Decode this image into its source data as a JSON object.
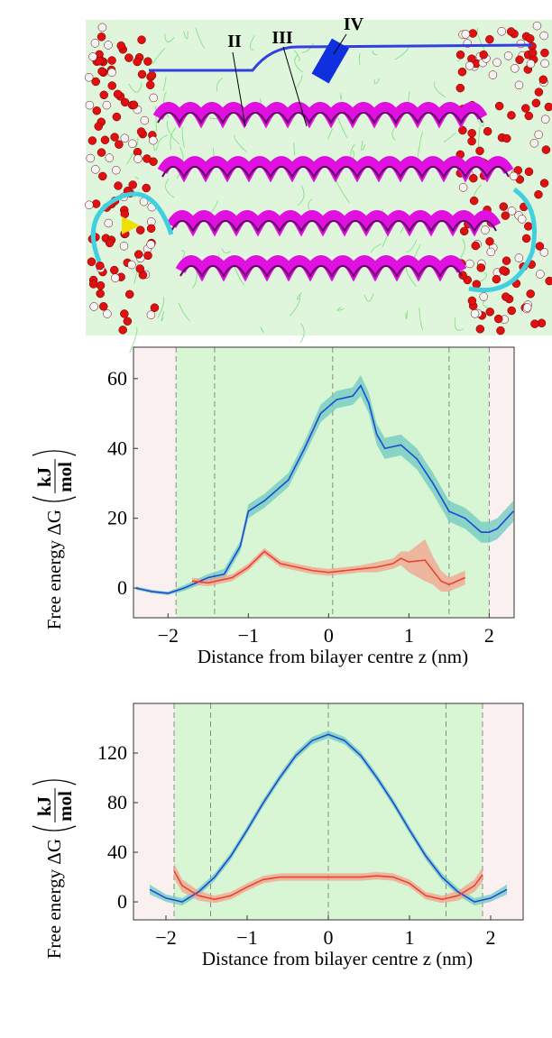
{
  "image": {
    "labels": [
      "II",
      "III",
      "IV"
    ]
  },
  "chart_data": [
    {
      "type": "line",
      "xlabel": "Distance from bilayer centre z (nm)",
      "ylabel": "Free energy ΔG",
      "ylabel_unit": [
        "kJ",
        "mol"
      ],
      "xlim": [
        -2.43,
        2.31
      ],
      "ylim": [
        -8.5,
        69
      ],
      "xticks": [
        {
          "value": -2,
          "label": "−2"
        },
        {
          "value": -1,
          "label": "−1"
        },
        0,
        1,
        2
      ],
      "yticks": [
        0,
        20,
        40,
        60
      ],
      "vlines": [
        -1.9,
        -1.42,
        0.05,
        1.5,
        2.0
      ],
      "series": [
        {
          "color": "#1f48d6",
          "band_color": "#6cc9c2",
          "x": [
            -2.4,
            -2.2,
            -2.0,
            -1.8,
            -1.6,
            -1.5,
            -1.3,
            -1.1,
            -1.0,
            -0.8,
            -0.6,
            -0.5,
            -0.3,
            -0.1,
            0.1,
            0.3,
            0.4,
            0.5,
            0.6,
            0.7,
            0.9,
            1.1,
            1.3,
            1.5,
            1.7,
            1.9,
            2.0,
            2.1,
            2.3
          ],
          "values": [
            0,
            -1,
            -1.5,
            0,
            2,
            3,
            4,
            12,
            22,
            25,
            29,
            31,
            40,
            50,
            54,
            55,
            58,
            53,
            44,
            40,
            41,
            37,
            30,
            22,
            20,
            16,
            16,
            17,
            22
          ],
          "errors": [
            0.5,
            0.5,
            0.5,
            0.8,
            1,
            1,
            1.5,
            1.5,
            2,
            2,
            2,
            2,
            2,
            2.5,
            2.5,
            2.5,
            3,
            3,
            3,
            3,
            3,
            3,
            3,
            3,
            3,
            3,
            3,
            3,
            3
          ]
        },
        {
          "color": "#e8452c",
          "band_color": "#f2a08e",
          "x": [
            -1.7,
            -1.5,
            -1.2,
            -1.0,
            -0.8,
            -0.6,
            -0.4,
            -0.2,
            0,
            0.2,
            0.4,
            0.6,
            0.8,
            0.9,
            1.0,
            1.2,
            1.3,
            1.4,
            1.5,
            1.7
          ],
          "values": [
            2,
            1.5,
            3,
            6,
            10.5,
            7,
            6,
            5,
            4.5,
            5,
            5.5,
            6,
            7,
            8.5,
            7.5,
            8,
            5,
            2,
            1,
            3
          ],
          "errors": [
            1,
            1,
            1,
            1,
            1,
            1,
            1,
            1,
            1,
            1,
            1,
            1.5,
            1.5,
            2,
            3,
            6,
            4,
            3,
            2,
            2
          ]
        }
      ]
    },
    {
      "type": "line",
      "xlabel": "Distance from bilayer centre z (nm)",
      "ylabel": "Free energy ΔG",
      "ylabel_unit": [
        "kJ",
        "mol"
      ],
      "xlim": [
        -2.4,
        2.4
      ],
      "ylim": [
        -14.5,
        160
      ],
      "xticks": [
        {
          "value": -2,
          "label": "−2"
        },
        {
          "value": -1,
          "label": "−1"
        },
        0,
        1,
        2
      ],
      "yticks": [
        0,
        40,
        80,
        120
      ],
      "vlines": [
        -1.9,
        -1.45,
        0,
        1.45,
        1.9
      ],
      "series": [
        {
          "color": "#1f48d6",
          "band_color": "#6cc9c2",
          "x": [
            -2.2,
            -2.0,
            -1.8,
            -1.6,
            -1.4,
            -1.2,
            -1.0,
            -0.8,
            -0.6,
            -0.4,
            -0.2,
            0,
            0.2,
            0.4,
            0.6,
            0.8,
            1.0,
            1.2,
            1.4,
            1.6,
            1.8,
            2.0,
            2.2
          ],
          "values": [
            10,
            3,
            0,
            8,
            20,
            37,
            58,
            80,
            100,
            118,
            130,
            135,
            130,
            118,
            100,
            80,
            58,
            37,
            20,
            8,
            0,
            3,
            10
          ],
          "errors": [
            4,
            3,
            3,
            3,
            3,
            3,
            3,
            3,
            3,
            3,
            3,
            3,
            3,
            3,
            3,
            3,
            3,
            3,
            3,
            3,
            3,
            3,
            4
          ]
        },
        {
          "color": "#e8452c",
          "band_color": "#f2a08e",
          "x": [
            -1.9,
            -1.8,
            -1.6,
            -1.4,
            -1.2,
            -1.0,
            -0.8,
            -0.6,
            -0.4,
            0,
            0.4,
            0.6,
            0.8,
            1.0,
            1.2,
            1.4,
            1.6,
            1.8,
            1.9
          ],
          "values": [
            25,
            13,
            5,
            2,
            5,
            12,
            18,
            20,
            20,
            20,
            20,
            21,
            20,
            15,
            5,
            2,
            5,
            13,
            22
          ],
          "errors": [
            6,
            5,
            4,
            3,
            3,
            3,
            3,
            3,
            3,
            3,
            3,
            3,
            3,
            3,
            3,
            3,
            4,
            5,
            6
          ]
        }
      ]
    }
  ]
}
